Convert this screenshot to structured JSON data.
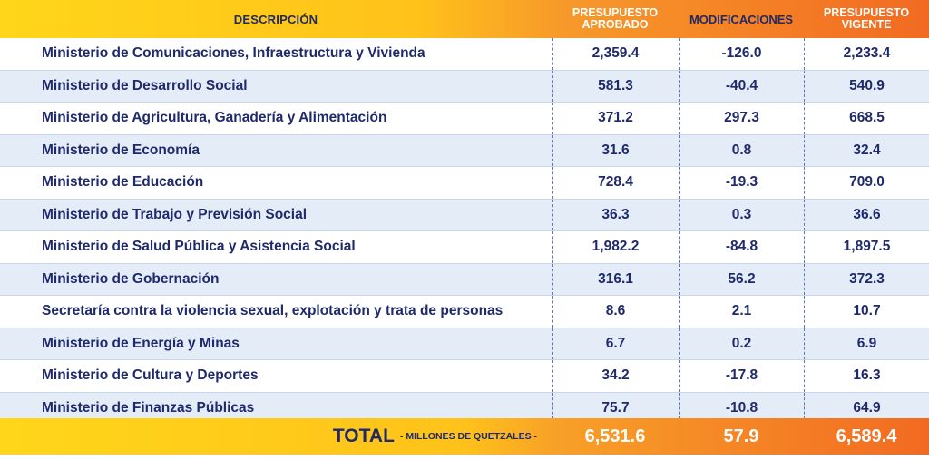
{
  "header": {
    "descripcion": "DESCRIPCIÓN",
    "col_aprobado": "PRESUPUESTO APROBADO",
    "col_modificaciones": "MODIFICACIONES",
    "col_vigente": "PRESUPUESTO VIGENTE"
  },
  "rows": [
    {
      "descripcion": "Ministerio de Comunicaciones, Infraestructura y Vivienda",
      "aprobado": "2,359.4",
      "modificaciones": "-126.0",
      "vigente": "2,233.4"
    },
    {
      "descripcion": "Ministerio de Desarrollo Social",
      "aprobado": "581.3",
      "modificaciones": "-40.4",
      "vigente": "540.9"
    },
    {
      "descripcion": "Ministerio de Agricultura, Ganadería y Alimentación",
      "aprobado": "371.2",
      "modificaciones": "297.3",
      "vigente": "668.5"
    },
    {
      "descripcion": "Ministerio de Economía",
      "aprobado": "31.6",
      "modificaciones": "0.8",
      "vigente": "32.4"
    },
    {
      "descripcion": "Ministerio de Educación",
      "aprobado": "728.4",
      "modificaciones": "-19.3",
      "vigente": "709.0"
    },
    {
      "descripcion": "Ministerio de Trabajo y Previsión Social",
      "aprobado": "36.3",
      "modificaciones": "0.3",
      "vigente": "36.6"
    },
    {
      "descripcion": "Ministerio de Salud Pública y Asistencia Social",
      "aprobado": "1,982.2",
      "modificaciones": "-84.8",
      "vigente": "1,897.5"
    },
    {
      "descripcion": "Ministerio de Gobernación",
      "aprobado": "316.1",
      "modificaciones": "56.2",
      "vigente": "372.3"
    },
    {
      "descripcion": "Secretaría contra la violencia sexual, explotación y trata de personas",
      "aprobado": "8.6",
      "modificaciones": "2.1",
      "vigente": "10.7"
    },
    {
      "descripcion": "Ministerio de Energía y Minas",
      "aprobado": "6.7",
      "modificaciones": "0.2",
      "vigente": "6.9"
    },
    {
      "descripcion": "Ministerio de Cultura y Deportes",
      "aprobado": "34.2",
      "modificaciones": "-17.8",
      "vigente": "16.3"
    },
    {
      "descripcion": "Ministerio de Finanzas Públicas",
      "aprobado": "75.7",
      "modificaciones": "-10.8",
      "vigente": "64.9"
    }
  ],
  "total": {
    "label": "TOTAL",
    "sublabel": "- MILLONES DE QUETZALES -",
    "aprobado": "6,531.6",
    "modificaciones": "57.9",
    "vigente": "6,589.4"
  },
  "colors": {
    "text": "#1f2a6b",
    "alt_row": "#e4ecf8",
    "header_yellow": "#ffd61a",
    "header_orange": "#f26a22"
  }
}
